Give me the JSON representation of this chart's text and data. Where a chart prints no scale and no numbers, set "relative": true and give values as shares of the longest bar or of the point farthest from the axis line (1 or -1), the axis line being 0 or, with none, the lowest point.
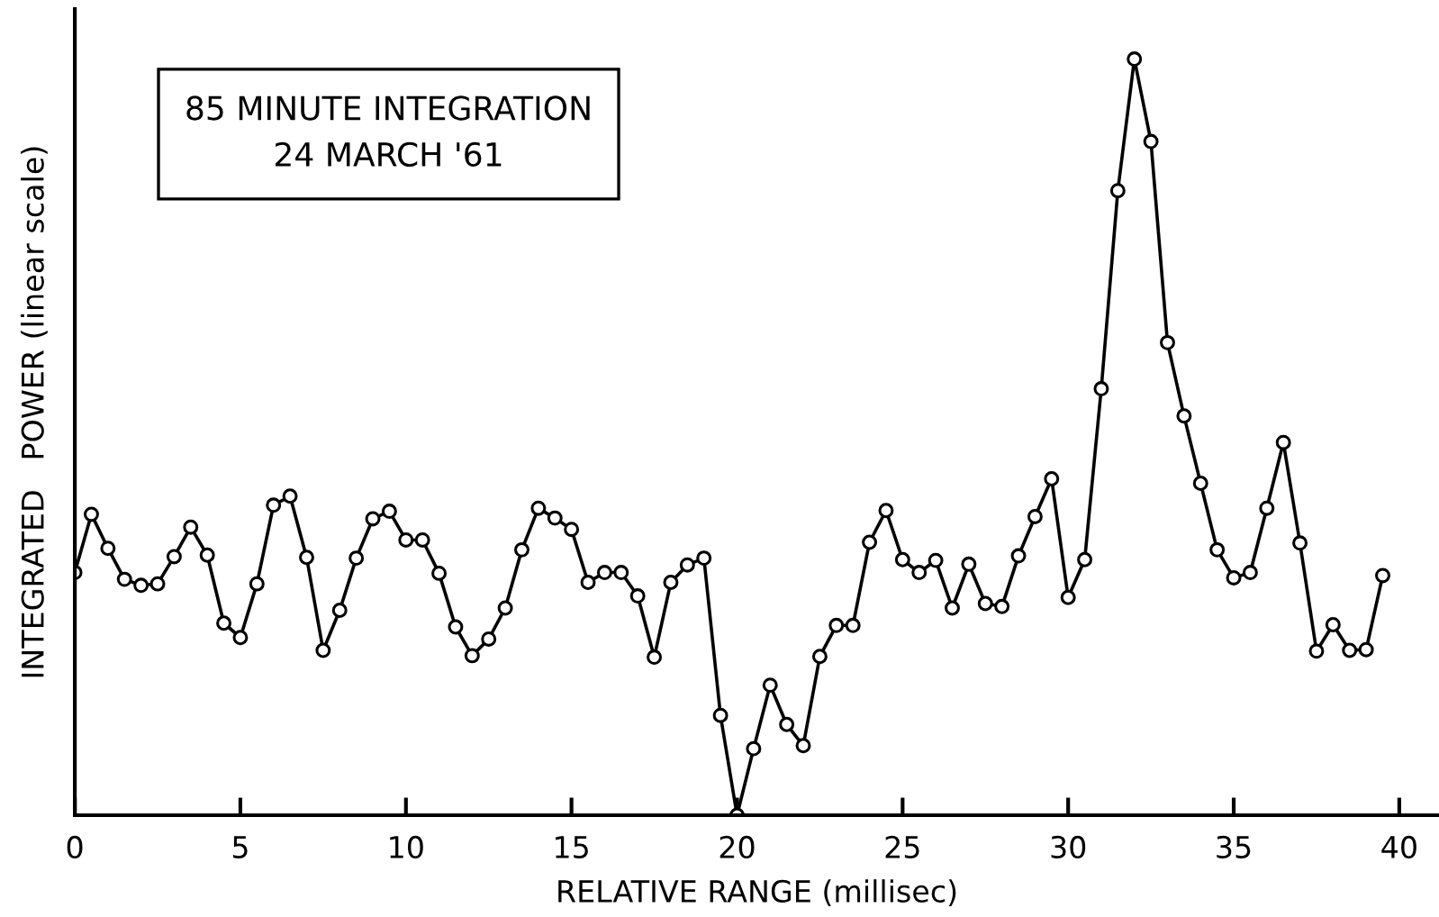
{
  "chart_data": {
    "type": "line",
    "relative": true,
    "xlabel": "RELATIVE RANGE (millisec)",
    "ylabel": "INTEGRATED   POWER (linear scale)",
    "annotations": [
      "85 MINUTE INTEGRATION\n24 MARCH '61"
    ],
    "x": [
      0,
      0.5,
      1,
      1.5,
      2,
      2.5,
      3,
      3.5,
      4,
      4.5,
      5,
      5.5,
      6,
      6.5,
      7,
      7.5,
      8,
      8.5,
      9,
      9.5,
      10,
      10.5,
      11,
      11.5,
      12,
      12.5,
      13,
      13.5,
      14,
      14.5,
      15,
      15.5,
      16,
      16.5,
      17,
      17.5,
      18,
      18.5,
      19,
      19.5,
      20,
      20.5,
      21,
      21.5,
      22,
      22.5,
      23,
      23.5,
      24,
      24.5,
      25,
      25.5,
      26,
      26.5,
      27,
      27.5,
      28,
      28.5,
      29,
      29.5,
      30,
      30.5,
      31,
      31.5,
      32,
      32.5,
      33,
      33.5,
      34,
      34.5,
      35,
      35.5,
      36,
      36.5,
      37,
      37.5,
      38,
      38.5,
      39,
      39.5
    ],
    "series": [
      {
        "color": "#000000",
        "values": [
          0.321,
          0.398,
          0.353,
          0.312,
          0.304,
          0.306,
          0.342,
          0.381,
          0.344,
          0.254,
          0.235,
          0.306,
          0.41,
          0.422,
          0.341,
          0.218,
          0.271,
          0.34,
          0.392,
          0.402,
          0.364,
          0.364,
          0.32,
          0.249,
          0.211,
          0.233,
          0.274,
          0.351,
          0.406,
          0.393,
          0.378,
          0.308,
          0.321,
          0.321,
          0.29,
          0.209,
          0.308,
          0.331,
          0.34,
          0.132,
          0,
          0.088,
          0.172,
          0.12,
          0.092,
          0.21,
          0.251,
          0.251,
          0.361,
          0.403,
          0.338,
          0.321,
          0.337,
          0.274,
          0.332,
          0.28,
          0.276,
          0.343,
          0.395,
          0.445,
          0.288,
          0.338,
          0.564,
          0.826,
          1.0,
          0.891,
          0.625,
          0.528,
          0.439,
          0.351,
          0.314,
          0.321,
          0.406,
          0.493,
          0.36,
          0.217,
          0.252,
          0.218,
          0.219,
          0.317
        ]
      }
    ],
    "xlim": [
      0,
      41.2
    ],
    "xticks": [
      0,
      5,
      10,
      15,
      20,
      25,
      30,
      35,
      40
    ],
    "marker": "circle",
    "line_style": "solid",
    "grid": false
  }
}
